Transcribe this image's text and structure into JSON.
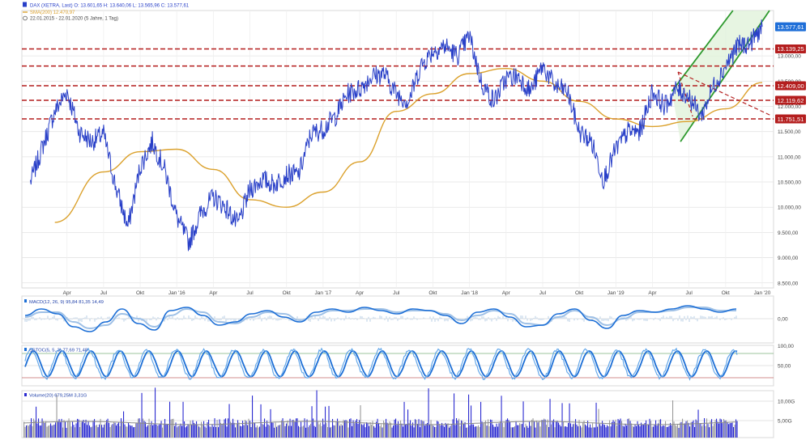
{
  "header": {
    "line1": "DAX (XETRA, Last)  O: 13.601,65  H: 13.640,06  L: 13.565,96  C: 13.577,61",
    "line2": "SMA(200)  12.470,97",
    "line3": "22.01.2015 - 22.01.2020  (5 Jahre, 1 Tag)"
  },
  "colors": {
    "price": "#2940c8",
    "sma": "#dba12c",
    "support": "#b41e1e",
    "channel": "#2e9a2e",
    "channel_fill": "#dff2d8",
    "macd": "#1d6fd6",
    "signal": "#9ec0e6",
    "volume": "#2a2ad0",
    "volume_grey": "#9a9a9a",
    "grid": "#e3e3e3",
    "current_label": "#1f6fd8"
  },
  "chart_data": [
    {
      "type": "line",
      "name": "main-price-chart",
      "x_tick_labels": [
        "Apr",
        "Jul",
        "Okt",
        "Jan '16",
        "Apr",
        "Jul",
        "Okt",
        "Jan '17",
        "Apr",
        "Jul",
        "Okt",
        "Jan '18",
        "Apr",
        "Jul",
        "Okt",
        "Jan '19",
        "Apr",
        "Jul",
        "Okt",
        "Jan '20"
      ],
      "y_tick_labels": [
        "13.000,00",
        "12.500,00",
        "12.000,00",
        "11.500,00",
        "11.000,00",
        "10.500,00",
        "10.000,00",
        "9.500,00",
        "9.000,00",
        "8.500,00"
      ],
      "ylim": [
        8400,
        13900
      ],
      "scale": "linear",
      "grid": true,
      "series": [
        {
          "name": "DAX (XETRA, Last)",
          "x": [
            "2015-01",
            "2015-02",
            "2015-03",
            "2015-04",
            "2015-05",
            "2015-06",
            "2015-07",
            "2015-08",
            "2015-09",
            "2015-10",
            "2015-11",
            "2015-12",
            "2016-01",
            "2016-02",
            "2016-03",
            "2016-04",
            "2016-05",
            "2016-06",
            "2016-07",
            "2016-08",
            "2016-09",
            "2016-10",
            "2016-11",
            "2016-12",
            "2017-01",
            "2017-02",
            "2017-03",
            "2017-04",
            "2017-05",
            "2017-06",
            "2017-07",
            "2017-08",
            "2017-09",
            "2017-10",
            "2017-11",
            "2017-12",
            "2018-01",
            "2018-02",
            "2018-03",
            "2018-04",
            "2018-05",
            "2018-06",
            "2018-07",
            "2018-08",
            "2018-09",
            "2018-10",
            "2018-11",
            "2018-12",
            "2019-01",
            "2019-02",
            "2019-03",
            "2019-04",
            "2019-05",
            "2019-06",
            "2019-07",
            "2019-08",
            "2019-09",
            "2019-10",
            "2019-11",
            "2019-12",
            "2020-01"
          ],
          "values": [
            10500,
            11200,
            11900,
            12300,
            11500,
            11300,
            11450,
            10400,
            9600,
            10800,
            11300,
            10750,
            9800,
            9300,
            9900,
            10200,
            10000,
            9650,
            10350,
            10550,
            10450,
            10650,
            10650,
            11450,
            11550,
            11800,
            12250,
            12350,
            12600,
            12650,
            12250,
            12100,
            12800,
            13100,
            13200,
            13000,
            13400,
            12450,
            12100,
            12550,
            12600,
            12300,
            12800,
            12400,
            12300,
            11500,
            11300,
            10550,
            11150,
            11500,
            11500,
            12300,
            12000,
            12350,
            12200,
            11800,
            12400,
            12800,
            13200,
            13250,
            13577.61
          ]
        },
        {
          "name": "SMA(200)",
          "x": [
            "2015-03",
            "2015-07",
            "2015-10",
            "2016-01",
            "2016-04",
            "2016-07",
            "2016-10",
            "2017-01",
            "2017-04",
            "2017-07",
            "2017-10",
            "2018-01",
            "2018-04",
            "2018-07",
            "2018-10",
            "2019-01",
            "2019-04",
            "2019-07",
            "2019-10",
            "2020-01"
          ],
          "values": [
            9700,
            10700,
            11100,
            11150,
            10750,
            10150,
            10000,
            10300,
            10900,
            11900,
            12250,
            12650,
            12750,
            12500,
            12100,
            11750,
            11600,
            11700,
            11950,
            12470.97
          ]
        }
      ],
      "support_levels": [
        13139.25,
        12800,
        12409,
        12119.62,
        11751.51
      ],
      "support_labels": [
        "13.139,25",
        "12.409,00",
        "12.119,62",
        "11.751,51"
      ],
      "current_label": "13.577,61"
    },
    {
      "type": "line",
      "name": "macd-panel",
      "legend": "MACD(12, 26, 9)  95,84  81,35  14,49",
      "y_tick_labels": [
        "0,00"
      ],
      "series": [
        {
          "name": "MACD",
          "values": [
            0.2,
            0.6,
            0.3,
            -0.5,
            -0.8,
            -0.2,
            0.6,
            -0.3,
            -0.7,
            0.5,
            0.7,
            0.2,
            -0.4,
            -0.2,
            0.3,
            0.5,
            0.1,
            -0.2,
            0.4,
            0.6,
            0.4,
            0.7,
            0.5,
            0.3,
            0.6,
            0.5,
            0.2,
            -0.3,
            0.4,
            0.6,
            0.1,
            -0.5,
            -0.4,
            0.3,
            0.6,
            -0.1,
            -0.6,
            0.2,
            0.5,
            0.4,
            0.6,
            0.8,
            0.6,
            0.4,
            0.6
          ]
        },
        {
          "name": "Signal",
          "values": [
            0.1,
            0.4,
            0.4,
            -0.2,
            -0.6,
            -0.4,
            0.3,
            0.0,
            -0.5,
            0.2,
            0.6,
            0.4,
            -0.2,
            -0.3,
            0.1,
            0.4,
            0.3,
            -0.1,
            0.2,
            0.5,
            0.5,
            0.6,
            0.6,
            0.4,
            0.5,
            0.5,
            0.3,
            -0.1,
            0.2,
            0.5,
            0.3,
            -0.3,
            -0.4,
            0.1,
            0.5,
            0.1,
            -0.4,
            0.0,
            0.4,
            0.4,
            0.5,
            0.7,
            0.7,
            0.5,
            0.5
          ]
        }
      ]
    },
    {
      "type": "line",
      "name": "stochastic-panel",
      "legend": "SSTOC(5, 5, 3)  77,69  71,48",
      "y_tick_labels": [
        "100,00",
        "50,00"
      ],
      "ylim": [
        0,
        100
      ],
      "bands": [
        80,
        20
      ]
    },
    {
      "type": "bar",
      "name": "volume-panel",
      "legend": "Volume(20)  679,25M  3,31G",
      "y_tick_labels": [
        "10,00G",
        "5,00G"
      ]
    }
  ]
}
